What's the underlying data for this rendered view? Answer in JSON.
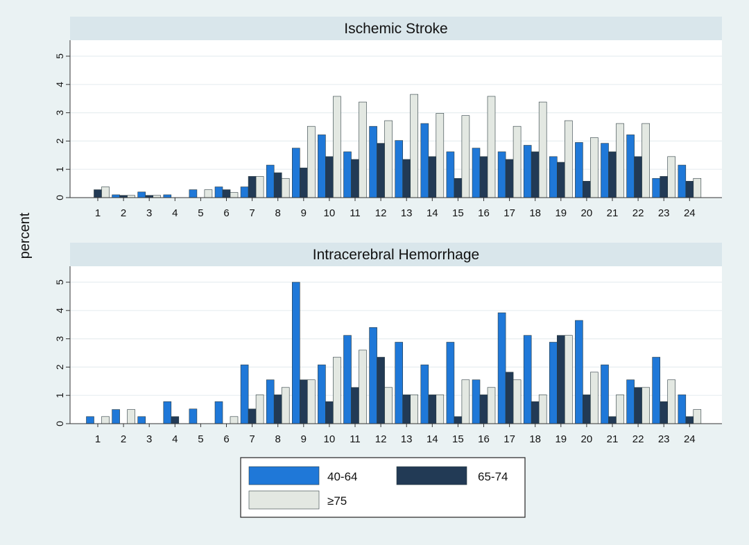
{
  "chart_data": [
    {
      "type": "bar",
      "title": "Ischemic Stroke",
      "ylabel": "percent",
      "ylim": [
        0,
        5
      ],
      "yticks": [
        0,
        1,
        2,
        3,
        4,
        5
      ],
      "categories": [
        "1",
        "2",
        "3",
        "4",
        "5",
        "6",
        "7",
        "8",
        "9",
        "10",
        "11",
        "12",
        "13",
        "14",
        "15",
        "16",
        "17",
        "18",
        "19",
        "20",
        "21",
        "22",
        "23",
        "24"
      ],
      "series": [
        {
          "name": "40-64",
          "color": "#1f78d8",
          "values": [
            0,
            0.1,
            0.2,
            0.1,
            0.28,
            0.38,
            0.38,
            1.15,
            1.75,
            2.22,
            1.62,
            2.52,
            2.02,
            2.62,
            1.62,
            1.75,
            1.62,
            1.85,
            1.45,
            1.95,
            1.92,
            2.22,
            0.68,
            1.15
          ]
        },
        {
          "name": "65-74",
          "color": "#223a55",
          "values": [
            0.28,
            0.08,
            0.08,
            0,
            0,
            0.28,
            0.75,
            0.88,
            1.05,
            1.45,
            1.35,
            1.92,
            1.35,
            1.45,
            0.68,
            1.45,
            1.35,
            1.62,
            1.25,
            0.58,
            1.62,
            1.45,
            0.75,
            0.58
          ]
        },
        {
          "name": "≥75",
          "color": "#e3e8e2",
          "values": [
            0.38,
            0.08,
            0.08,
            0,
            0.28,
            0.18,
            0.75,
            0.68,
            2.52,
            3.58,
            3.38,
            2.72,
            3.65,
            2.98,
            2.9,
            3.58,
            2.52,
            3.38,
            2.72,
            2.12,
            2.62,
            2.62,
            1.45,
            0.68
          ]
        }
      ]
    },
    {
      "type": "bar",
      "title": "Intracerebral Hemorrhage",
      "ylabel": "percent",
      "ylim": [
        0,
        5
      ],
      "yticks": [
        0,
        1,
        2,
        3,
        4,
        5
      ],
      "categories": [
        "1",
        "2",
        "3",
        "4",
        "5",
        "6",
        "7",
        "8",
        "9",
        "10",
        "11",
        "12",
        "13",
        "14",
        "15",
        "16",
        "17",
        "18",
        "19",
        "20",
        "21",
        "22",
        "23",
        "24"
      ],
      "series": [
        {
          "name": "40-64",
          "color": "#1f78d8",
          "values": [
            0.25,
            0.5,
            0.25,
            0.78,
            0.52,
            0.78,
            2.08,
            1.55,
            5.0,
            2.08,
            3.12,
            3.4,
            2.88,
            2.08,
            2.88,
            1.55,
            3.92,
            3.12,
            2.88,
            3.65,
            2.08,
            1.55,
            2.35,
            1.02
          ]
        },
        {
          "name": "65-74",
          "color": "#223a55",
          "values": [
            0,
            0,
            0,
            0.25,
            0,
            0,
            0.52,
            1.02,
            1.55,
            0.78,
            1.28,
            2.35,
            1.02,
            1.02,
            0.25,
            1.02,
            1.82,
            0.78,
            3.12,
            1.02,
            0.25,
            1.28,
            0.78,
            0.25
          ]
        },
        {
          "name": "≥75",
          "color": "#e3e8e2",
          "values": [
            0.25,
            0.5,
            0,
            0,
            0,
            0.25,
            1.02,
            1.28,
            1.55,
            2.35,
            2.6,
            1.28,
            1.02,
            1.02,
            1.55,
            1.28,
            1.55,
            1.02,
            3.12,
            1.82,
            1.02,
            1.28,
            1.55,
            0.5
          ]
        }
      ]
    }
  ],
  "legend": {
    "items": [
      {
        "label": "40-64",
        "color": "#1f78d8"
      },
      {
        "label": "65-74",
        "color": "#223a55"
      },
      {
        "label": "≥75",
        "color": "#e3e8e2"
      }
    ]
  }
}
